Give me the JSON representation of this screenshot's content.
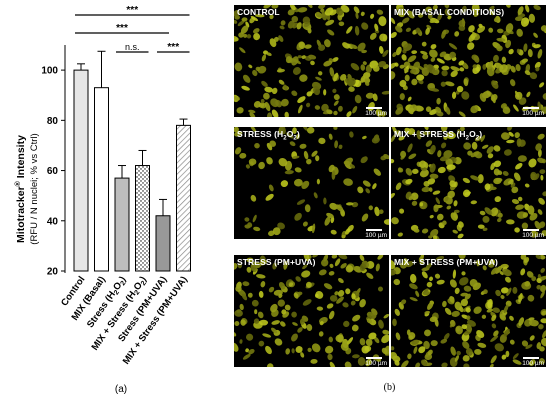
{
  "chart_data": {
    "type": "bar",
    "ylabel_main": "Mitotracker",
    "ylabel_sup": "®",
    "ylabel_suffix": " Intensity",
    "ylabel_sub": "(RFU / N nuclei; % vs Ctrl)",
    "ylim": [
      20,
      110
    ],
    "yticks": [
      20,
      40,
      60,
      80,
      100
    ],
    "categories": [
      "Control",
      "MIX (Basal)",
      "Stress (H2O2)",
      "MIX + Stress (H2O2)",
      "Stress (PM+UVA)",
      "MIX + Stress (PM+UVA)"
    ],
    "values": [
      100,
      93,
      57,
      62,
      42,
      78
    ],
    "errors": [
      2.5,
      14.5,
      5,
      6,
      6.5,
      2.5
    ],
    "fills": [
      "#e6e6e6",
      "#ffffff",
      "#bdbdbd",
      "dots",
      "#999999",
      "hatch"
    ],
    "significance": [
      {
        "label": "***",
        "from": 0,
        "to": 5
      },
      {
        "label": "***",
        "from": 0,
        "to": 4
      },
      {
        "label": "n.s.",
        "from": 2,
        "to": 3
      },
      {
        "label": "***",
        "from": 4,
        "to": 5
      }
    ],
    "panel_label": "(a)"
  },
  "micrographs": {
    "panel_label": "(b)",
    "scale_label": "100 µm",
    "panels": [
      {
        "title": "CONTROL"
      },
      {
        "title": "MIX (BASAL CONDITIONS)"
      },
      {
        "title": "STRESS (H2O2)"
      },
      {
        "title": "MIX + STRESS (H2O2)"
      },
      {
        "title": "STRESS (PM+UVA)"
      },
      {
        "title": "MIX + STRESS (PM+UVA)"
      }
    ]
  },
  "colors": {
    "fluorescence": "#d8d82a",
    "background": "#000000"
  }
}
